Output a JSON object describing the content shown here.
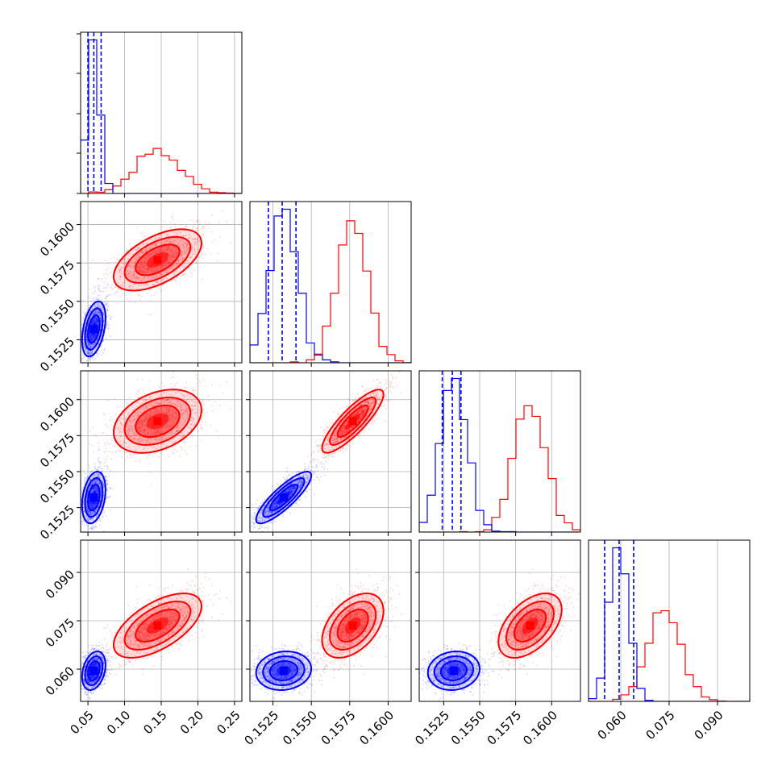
{
  "chart_data": {
    "type": "corner",
    "grid": true,
    "legend": "none",
    "title": "",
    "colors": {
      "series_a": "#ff0000",
      "series_b": "#0000ff"
    },
    "series": [
      {
        "color": "#ff0000",
        "means": [
          0.145,
          0.1577,
          0.1585,
          0.0735
        ],
        "sds": [
          0.03,
          0.001,
          0.0011,
          0.005
        ],
        "corr": [
          [
            1.0,
            0.55,
            0.35,
            0.6
          ],
          [
            0.55,
            1.0,
            0.85,
            0.45
          ],
          [
            0.35,
            0.85,
            1.0,
            0.5
          ],
          [
            0.6,
            0.45,
            0.5,
            1.0
          ]
        ]
      },
      {
        "color": "#0000ff",
        "means": [
          0.058,
          0.1532,
          0.1532,
          0.0595
        ],
        "sds": [
          0.008,
          0.0009,
          0.0009,
          0.003
        ],
        "corr": [
          [
            1.0,
            0.4,
            0.3,
            0.3
          ],
          [
            0.4,
            1.0,
            0.85,
            0.1
          ],
          [
            0.3,
            0.85,
            1.0,
            0.1
          ],
          [
            0.3,
            0.1,
            0.1,
            1.0
          ]
        ]
      }
    ],
    "quantiles_blue": [
      [
        0.05,
        0.058,
        0.068
      ],
      [
        0.1522,
        0.1531,
        0.154
      ],
      [
        0.1524,
        0.1531,
        0.1537
      ],
      [
        0.055,
        0.0595,
        0.064
      ]
    ],
    "parameters": [
      {
        "range": [
          0.04,
          0.26
        ],
        "ticks": [
          0.05,
          0.1,
          0.15,
          0.2,
          0.25
        ],
        "tick_labels": [
          "0.05",
          "0.10",
          "0.15",
          "0.20",
          "0.25"
        ]
      },
      {
        "range": [
          0.151,
          0.1615
        ],
        "ticks": [
          0.1525,
          0.155,
          0.1575,
          0.16
        ],
        "tick_labels": [
          "0.1525",
          "0.1550",
          "0.1575",
          "0.1600"
        ]
      },
      {
        "range": [
          0.1508,
          0.162
        ],
        "ticks": [
          0.1525,
          0.155,
          0.1575,
          0.16
        ],
        "tick_labels": [
          "0.1525",
          "0.1550",
          "0.1575",
          "0.1600"
        ]
      },
      {
        "range": [
          0.05,
          0.1
        ],
        "ticks": [
          0.06,
          0.075,
          0.09
        ],
        "tick_labels": [
          "0.060",
          "0.075",
          "0.090"
        ]
      }
    ]
  }
}
